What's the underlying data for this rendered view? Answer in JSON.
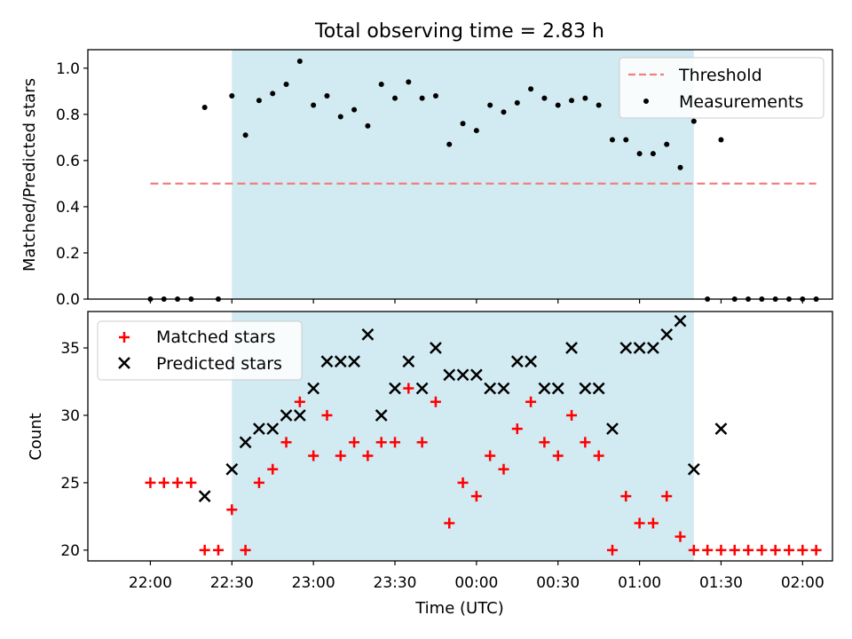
{
  "title": "Total observing time = 2.83 h",
  "chart_data": [
    {
      "type": "scatter",
      "ylabel": "Matched/Predicted stars",
      "ylim": [
        0,
        1.08
      ],
      "yticks": [
        "0.0",
        "0.2",
        "0.4",
        "0.6",
        "0.8",
        "1.0"
      ],
      "shaded_span": [
        "22:30",
        "01:20"
      ],
      "legend_placement": "top-right",
      "threshold": {
        "name": "Threshold",
        "y": 0.5,
        "x_start": "22:00",
        "x_end": "02:05",
        "color": "#f08080"
      },
      "series": [
        {
          "name": "Measurements",
          "color": "#000000",
          "x": [
            "22:00",
            "22:05",
            "22:10",
            "22:15",
            "22:20",
            "22:25",
            "22:30",
            "22:35",
            "22:40",
            "22:45",
            "22:50",
            "22:55",
            "23:00",
            "23:05",
            "23:10",
            "23:15",
            "23:20",
            "23:25",
            "23:30",
            "23:35",
            "23:40",
            "23:45",
            "23:50",
            "23:55",
            "00:00",
            "00:05",
            "00:10",
            "00:15",
            "00:20",
            "00:25",
            "00:30",
            "00:35",
            "00:40",
            "00:45",
            "00:50",
            "00:55",
            "01:00",
            "01:05",
            "01:10",
            "01:15",
            "01:20",
            "01:25",
            "01:30",
            "01:35",
            "01:40",
            "01:45",
            "01:50",
            "01:55",
            "02:00",
            "02:05"
          ],
          "values": [
            0,
            0,
            0,
            0,
            0.83,
            0,
            0.88,
            0.71,
            0.86,
            0.89,
            0.93,
            1.03,
            0.84,
            0.88,
            0.79,
            0.82,
            0.75,
            0.93,
            0.87,
            0.94,
            0.87,
            0.88,
            0.67,
            0.76,
            0.73,
            0.84,
            0.81,
            0.85,
            0.91,
            0.87,
            0.84,
            0.86,
            0.87,
            0.84,
            0.69,
            0.69,
            0.63,
            0.63,
            0.67,
            0.57,
            0.77,
            0,
            0.69,
            0,
            0,
            0,
            0,
            0,
            0,
            0
          ]
        }
      ]
    },
    {
      "type": "scatter",
      "xlabel": "Time (UTC)",
      "ylabel": "Count",
      "ylim": [
        19.2,
        37.7
      ],
      "yticks": [
        "20",
        "25",
        "30",
        "35"
      ],
      "xticks": [
        "22:00",
        "22:30",
        "23:00",
        "23:30",
        "00:00",
        "00:30",
        "01:00",
        "01:30",
        "02:00"
      ],
      "shaded_span": [
        "22:30",
        "01:20"
      ],
      "legend_placement": "top-left",
      "series": [
        {
          "name": "Matched stars",
          "marker": "plus",
          "color": "#ff0000",
          "x": [
            "22:00",
            "22:05",
            "22:10",
            "22:15",
            "22:20",
            "22:25",
            "22:30",
            "22:35",
            "22:40",
            "22:45",
            "22:50",
            "22:55",
            "23:00",
            "23:05",
            "23:10",
            "23:15",
            "23:20",
            "23:25",
            "23:30",
            "23:35",
            "23:40",
            "23:45",
            "23:50",
            "23:55",
            "00:00",
            "00:05",
            "00:10",
            "00:15",
            "00:20",
            "00:25",
            "00:30",
            "00:35",
            "00:40",
            "00:45",
            "00:50",
            "00:55",
            "01:00",
            "01:05",
            "01:10",
            "01:15",
            "01:20",
            "01:25",
            "01:30",
            "01:35",
            "01:40",
            "01:45",
            "01:50",
            "01:55",
            "02:00",
            "02:05"
          ],
          "values": [
            25,
            25,
            25,
            25,
            20,
            20,
            23,
            20,
            25,
            26,
            28,
            31,
            27,
            30,
            27,
            28,
            27,
            28,
            28,
            32,
            28,
            31,
            22,
            25,
            24,
            27,
            26,
            29,
            31,
            28,
            27,
            30,
            28,
            27,
            20,
            24,
            22,
            22,
            24,
            21,
            20,
            20,
            20,
            20,
            20,
            20,
            20,
            20,
            20,
            20
          ]
        },
        {
          "name": "Predicted stars",
          "marker": "x",
          "color": "#000000",
          "x": [
            "22:20",
            "22:30",
            "22:35",
            "22:40",
            "22:45",
            "22:50",
            "22:55",
            "23:00",
            "23:05",
            "23:10",
            "23:15",
            "23:20",
            "23:25",
            "23:30",
            "23:35",
            "23:40",
            "23:45",
            "23:50",
            "23:55",
            "00:00",
            "00:05",
            "00:10",
            "00:15",
            "00:20",
            "00:25",
            "00:30",
            "00:35",
            "00:40",
            "00:45",
            "00:50",
            "00:55",
            "01:00",
            "01:05",
            "01:10",
            "01:15",
            "01:20",
            "01:30"
          ],
          "values": [
            24,
            26,
            28,
            29,
            29,
            30,
            30,
            32,
            34,
            34,
            34,
            36,
            30,
            32,
            34,
            32,
            35,
            33,
            33,
            33,
            32,
            32,
            34,
            34,
            32,
            32,
            35,
            32,
            32,
            29,
            35,
            35,
            35,
            36,
            37,
            26,
            29
          ]
        }
      ]
    }
  ]
}
